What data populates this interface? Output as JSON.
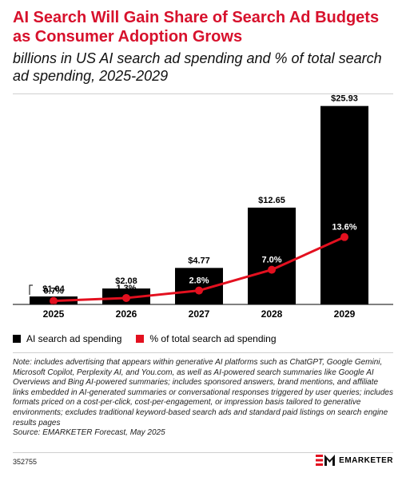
{
  "header": {
    "title": "AI Search Will Gain Share of Search Ad Budgets as Consumer Adoption Grows",
    "subtitle": "billions in US AI search ad spending and % of total search ad spending, 2025-2029"
  },
  "chart_data": {
    "type": "bar",
    "categories": [
      "2025",
      "2026",
      "2027",
      "2028",
      "2029"
    ],
    "series": [
      {
        "name": "AI search ad spending",
        "type": "bar",
        "values": [
          1.04,
          2.08,
          4.77,
          12.65,
          25.93
        ],
        "labels": [
          "$1.04",
          "$2.08",
          "$4.77",
          "$12.65",
          "$25.93"
        ],
        "color": "#000000"
      },
      {
        "name": "% of total search ad spending",
        "type": "line",
        "values": [
          0.7,
          1.3,
          2.8,
          7.0,
          13.6
        ],
        "labels": [
          "0.7%",
          "1.3%",
          "2.8%",
          "7.0%",
          "13.6%"
        ],
        "color": "#e3101f"
      }
    ],
    "ylim": [
      0,
      26
    ],
    "grid": false,
    "legend": "bottom-left"
  },
  "note": "Note: includes advertising that appears within generative AI platforms such as ChatGPT, Google Gemini, Microsoft Copilot, Perplexity AI, and You.com, as well as AI-powered search summaries like Google AI Overviews and Bing AI-powered summaries; includes sponsored answers, brand mentions, and affiliate links embedded in AI-generated summaries or conversational responses triggered by user queries; includes formats priced on a cost-per-click, cost-per-engagement, or impression basis tailored to generative environments; excludes traditional keyword-based search ads and standard paid listings on search engine results pages",
  "source": "Source: EMARKETER Forecast, May 2025",
  "footer": {
    "chart_id": "352755",
    "brand": "EMARKETER"
  },
  "colors": {
    "title": "#d7112c",
    "bar": "#000000",
    "line": "#e3101f",
    "brand": "#e3101f"
  }
}
